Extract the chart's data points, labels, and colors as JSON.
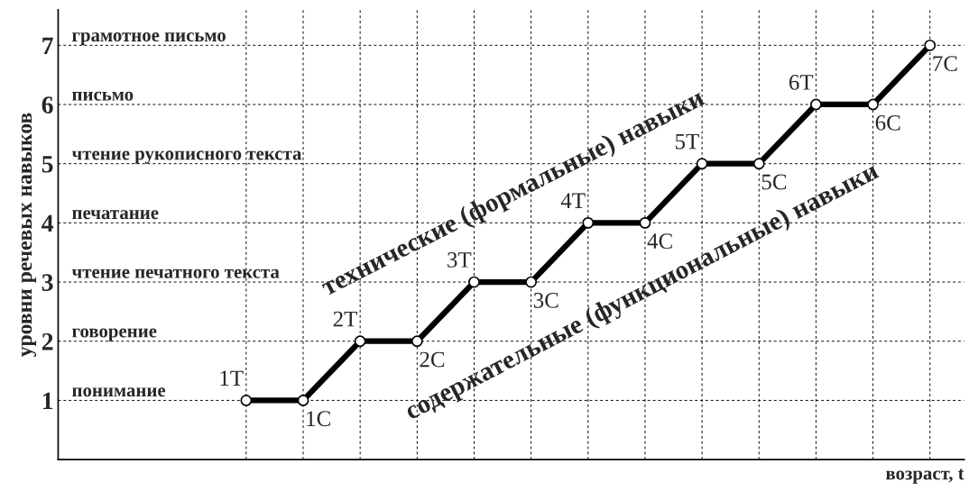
{
  "chart_data": {
    "type": "line",
    "ylabel": "уровни речевых навыков",
    "xlabel": "возраст, t",
    "categories": [
      null,
      null,
      null,
      null,
      null,
      null,
      null,
      null,
      null,
      null,
      null,
      null,
      null
    ],
    "series": [
      {
        "color": "#000000",
        "values": [
          1,
          1,
          2,
          2,
          3,
          3,
          4,
          4,
          5,
          5,
          6,
          6,
          7
        ],
        "value_labels": [
          "1T",
          "1C",
          "2T",
          "2C",
          "3T",
          "3C",
          "4T",
          "4C",
          "5T",
          "5C",
          "6T",
          "6C",
          "7C"
        ]
      }
    ],
    "ylim": [
      0,
      7.6
    ],
    "yticks": [
      1,
      2,
      3,
      4,
      5,
      6,
      7
    ],
    "grid": true,
    "marker": "circle",
    "line_style": "solid",
    "annotations": [
      "понимание",
      "говорение",
      "чтение печатного текста",
      "печатание",
      "чтение рукописного текста",
      "письмо",
      "грамотное письмо",
      "технические (формальные) навыки",
      "содержательные (функциональные) навыки"
    ]
  }
}
